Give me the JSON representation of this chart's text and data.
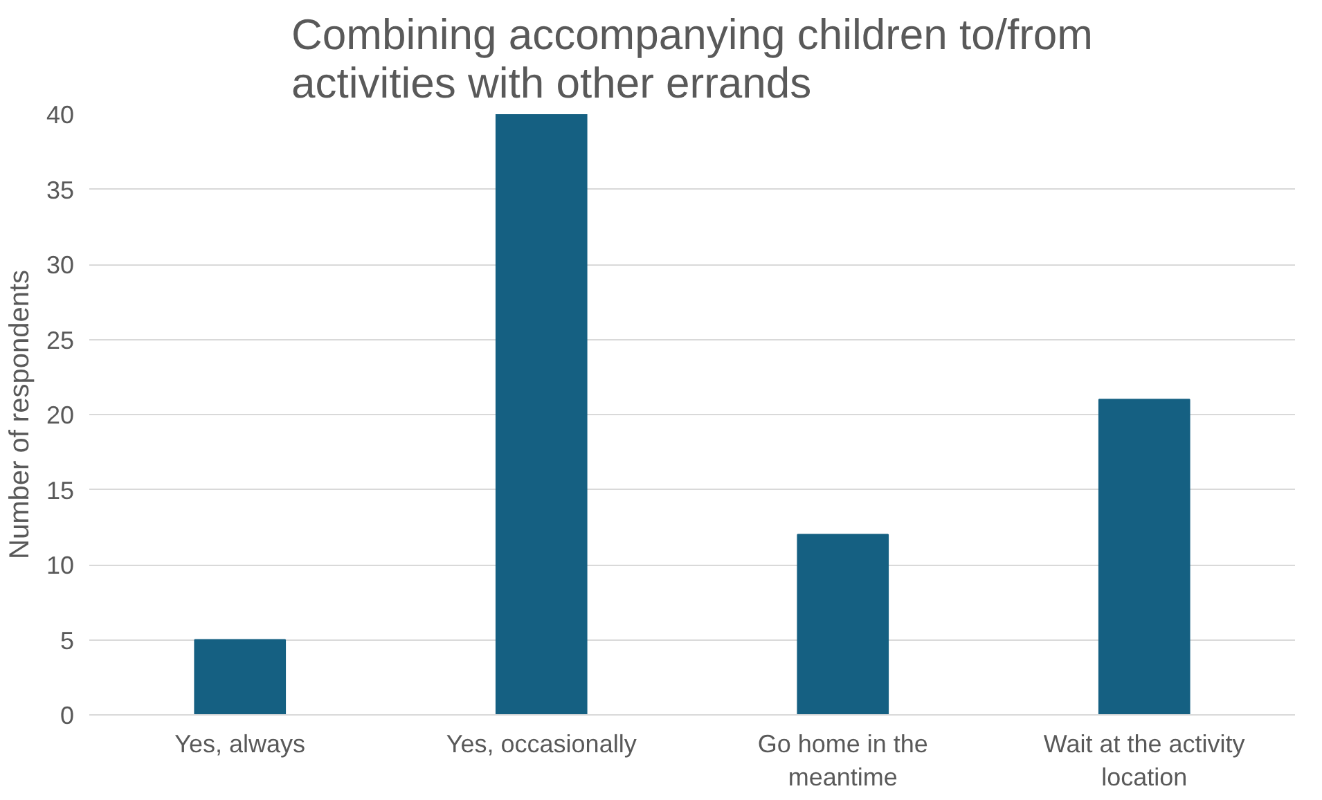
{
  "chart_data": {
    "type": "bar",
    "title": "Combining accompanying children to/from activities with other errands",
    "ylabel": "Number of respondents",
    "categories": [
      "Yes, always",
      "Yes, occasionally",
      "Go home in the meantime",
      "Wait at the activity location"
    ],
    "values": [
      5,
      40,
      12,
      21
    ],
    "color": "#156082",
    "ylim": [
      0,
      40
    ],
    "yticks": [
      0,
      5,
      10,
      15,
      20,
      25,
      30,
      35,
      40
    ],
    "grid": "y"
  }
}
